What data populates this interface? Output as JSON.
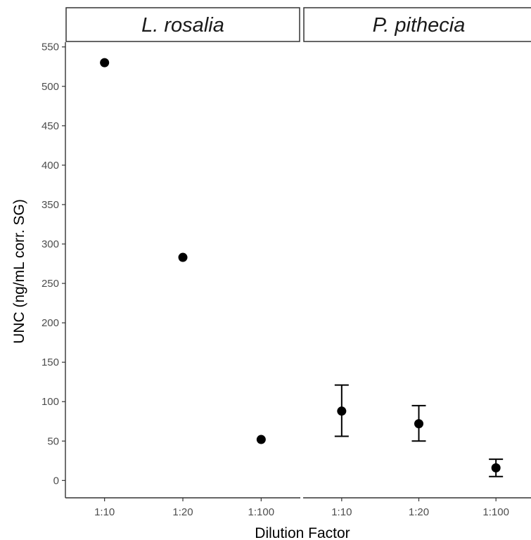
{
  "chart_data": {
    "type": "scatter",
    "xlabel": "Dilution Factor",
    "ylabel": "UNC (ng/mL corr. SG)",
    "ylim": [
      -22,
      556
    ],
    "yticks": [
      0,
      50,
      100,
      150,
      200,
      250,
      300,
      350,
      400,
      450,
      500,
      550
    ],
    "categories": [
      "1:10",
      "1:20",
      "1:100"
    ],
    "grid": false,
    "facets": [
      {
        "name": "L. rosalia",
        "points": [
          {
            "x": "1:10",
            "y": 530
          },
          {
            "x": "1:20",
            "y": 283
          },
          {
            "x": "1:100",
            "y": 52
          }
        ]
      },
      {
        "name": "P. pithecia",
        "points": [
          {
            "x": "1:10",
            "y": 88,
            "ymin": 56,
            "ymax": 121
          },
          {
            "x": "1:20",
            "y": 72,
            "ymin": 50,
            "ymax": 95
          },
          {
            "x": "1:100",
            "y": 16,
            "ymin": 5,
            "ymax": 27
          }
        ]
      }
    ]
  },
  "colors": {
    "point": "#000000",
    "axis": "#333333",
    "strip_fill": "#ffffff"
  }
}
